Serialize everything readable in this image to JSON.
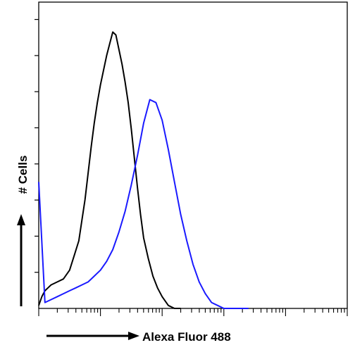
{
  "chart_data": {
    "type": "line",
    "title": "",
    "xlabel": "Alexa Fluor 488",
    "ylabel": "# Cells",
    "x_scale": "log",
    "xlim": [
      0,
      1
    ],
    "ylim": [
      0,
      1
    ],
    "grid": false,
    "legend": "none",
    "series": [
      {
        "color": "#000000",
        "x": [
          0.0,
          0.01,
          0.02,
          0.03,
          0.04,
          0.06,
          0.08,
          0.1,
          0.115,
          0.13,
          0.14,
          0.15,
          0.16,
          0.17,
          0.18,
          0.19,
          0.2,
          0.21,
          0.22,
          0.23,
          0.24,
          0.25,
          0.26,
          0.27,
          0.28,
          0.29,
          0.3,
          0.31,
          0.32,
          0.33,
          0.34,
          0.355,
          0.37,
          0.385,
          0.4,
          0.42,
          0.44,
          0.46
        ],
        "y": [
          0.01,
          0.04,
          0.06,
          0.07,
          0.08,
          0.09,
          0.1,
          0.13,
          0.18,
          0.23,
          0.3,
          0.37,
          0.46,
          0.55,
          0.63,
          0.7,
          0.76,
          0.81,
          0.86,
          0.9,
          0.94,
          0.93,
          0.88,
          0.83,
          0.77,
          0.7,
          0.61,
          0.51,
          0.41,
          0.32,
          0.24,
          0.17,
          0.11,
          0.07,
          0.04,
          0.01,
          0.0,
          0.0
        ]
      },
      {
        "color": "#1a1aff",
        "x": [
          0.0,
          0.02,
          0.04,
          0.06,
          0.08,
          0.1,
          0.12,
          0.14,
          0.16,
          0.18,
          0.2,
          0.22,
          0.24,
          0.26,
          0.28,
          0.3,
          0.32,
          0.34,
          0.36,
          0.38,
          0.4,
          0.42,
          0.44,
          0.46,
          0.48,
          0.5,
          0.52,
          0.54,
          0.56,
          0.58,
          0.6,
          0.62,
          0.64,
          0.66,
          0.68
        ],
        "y": [
          0.43,
          0.02,
          0.03,
          0.04,
          0.05,
          0.06,
          0.07,
          0.08,
          0.09,
          0.11,
          0.13,
          0.16,
          0.2,
          0.26,
          0.33,
          0.42,
          0.52,
          0.63,
          0.71,
          0.7,
          0.64,
          0.54,
          0.43,
          0.32,
          0.23,
          0.15,
          0.09,
          0.05,
          0.02,
          0.01,
          0.0,
          0.0,
          0.0,
          0.0,
          0.0
        ]
      }
    ]
  }
}
